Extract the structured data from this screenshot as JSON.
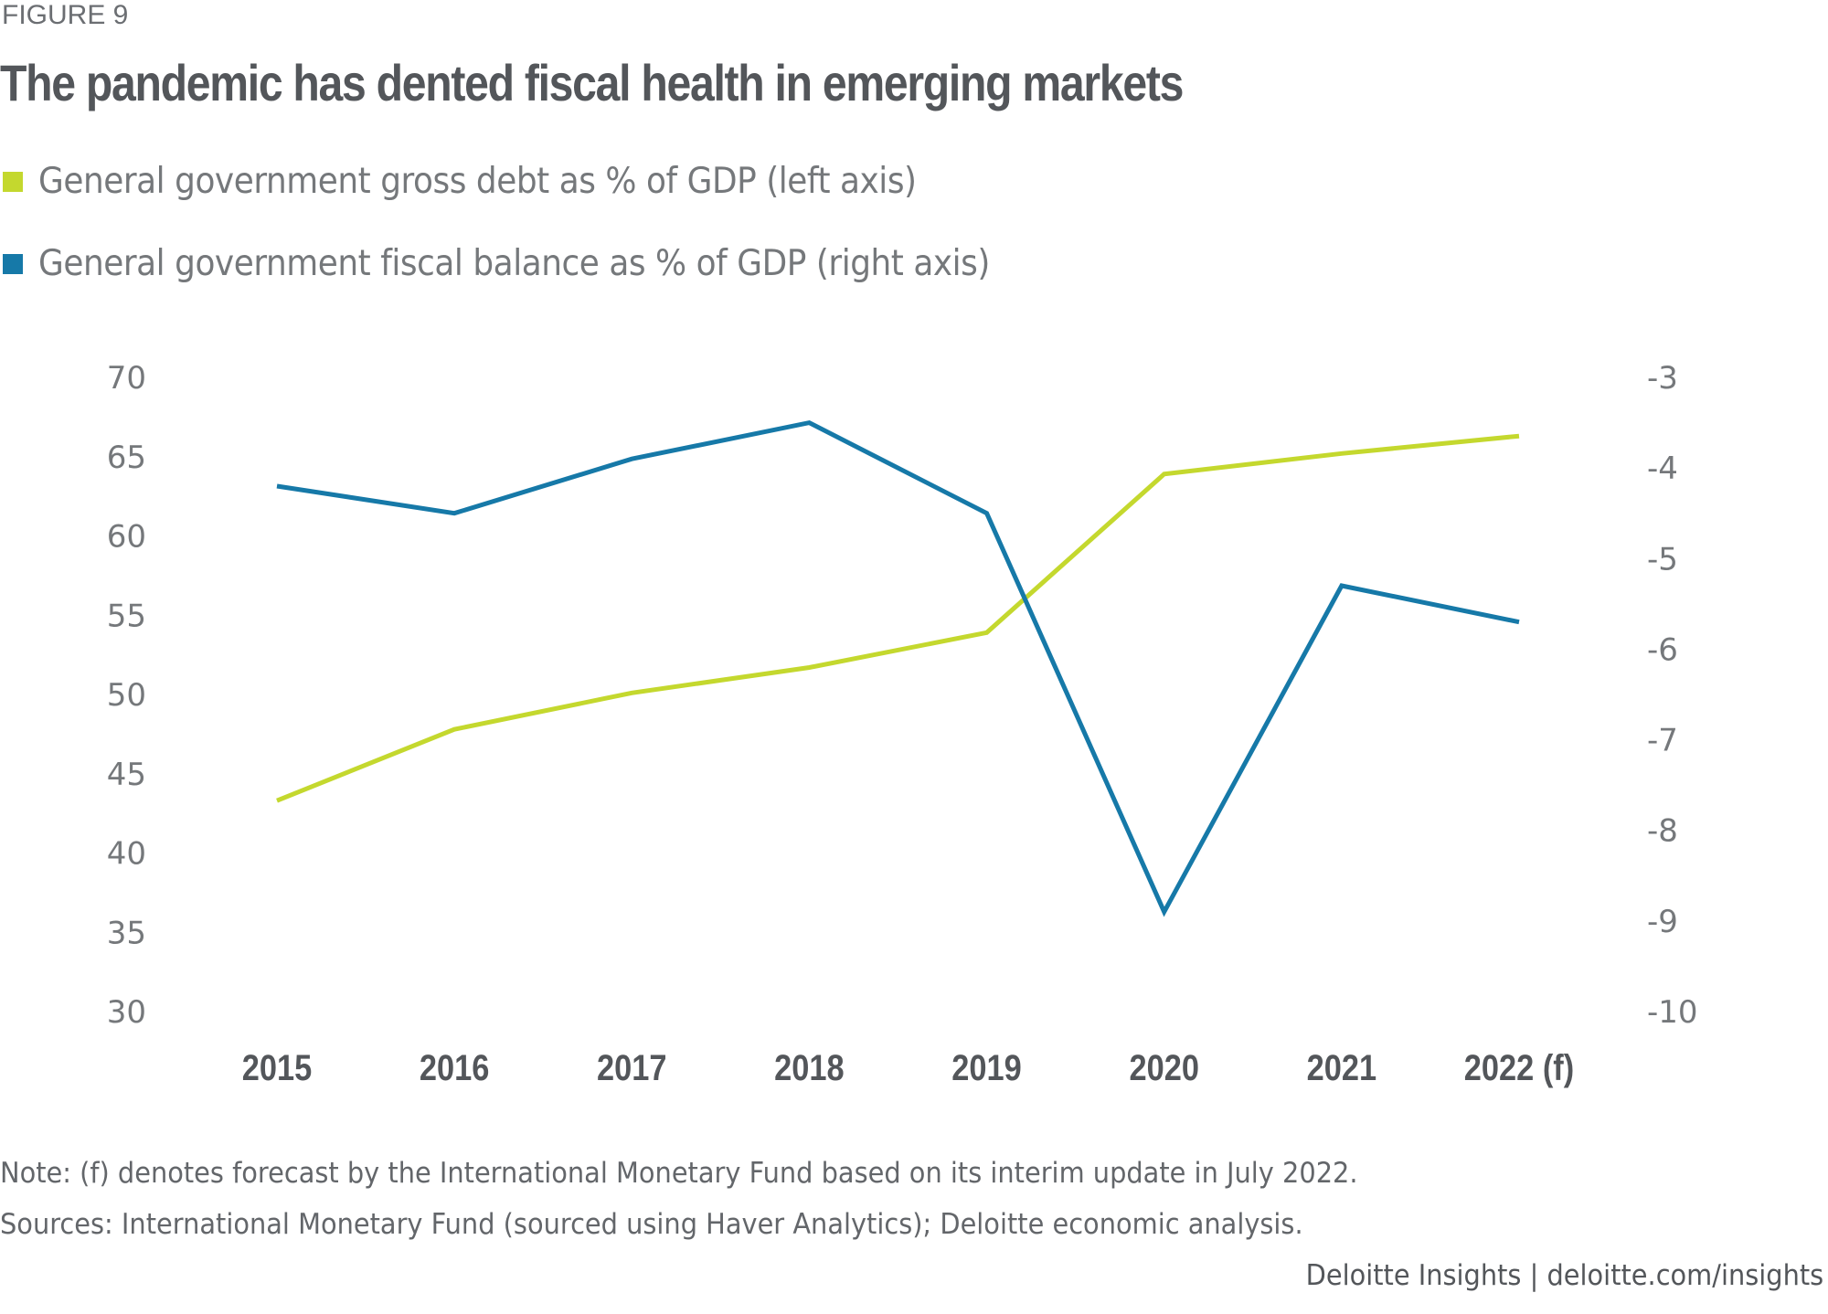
{
  "figure_label": "FIGURE 9",
  "title": "The pandemic has dented fiscal health in emerging markets",
  "legend": [
    {
      "label": "General government gross debt as % of GDP (left axis)",
      "color": "#c4d82e"
    },
    {
      "label": "General government fiscal balance as % of GDP (right axis)",
      "color": "#1679a8"
    }
  ],
  "note": "Note: (f) denotes forecast by the International Monetary Fund based on its interim update in July 2022.",
  "sources": "Sources: International Monetary Fund (sourced using Haver Analytics); Deloitte economic analysis.",
  "footer": "Deloitte Insights | deloitte.com/insights",
  "chart_data": {
    "type": "line",
    "title": "The pandemic has dented fiscal health in emerging markets",
    "categories": [
      "2015",
      "2016",
      "2017",
      "2018",
      "2019",
      "2020",
      "2021",
      "2022 (f)"
    ],
    "xlabel": "",
    "ylabel": "",
    "y_left": {
      "ticks": [
        70,
        65,
        60,
        55,
        50,
        45,
        40,
        35,
        30
      ],
      "range": [
        30,
        70
      ]
    },
    "y_right": {
      "ticks": [
        -3,
        -4,
        -5,
        -6,
        -7,
        -8,
        -9,
        -10
      ],
      "range": [
        -10,
        -3
      ]
    },
    "grid": false,
    "legend_position": "top-left",
    "series": [
      {
        "name": "General government gross debt as % of GDP (left axis)",
        "axis": "left",
        "color": "#c4d82e",
        "values": [
          43.3,
          47.8,
          50.1,
          51.7,
          53.9,
          63.9,
          65.2,
          66.3
        ]
      },
      {
        "name": "General government fiscal balance as % of GDP (right axis)",
        "axis": "right",
        "color": "#1679a8",
        "values": [
          -4.2,
          -4.5,
          -3.9,
          -3.5,
          -4.5,
          -8.9,
          -5.3,
          -5.7
        ]
      }
    ]
  }
}
